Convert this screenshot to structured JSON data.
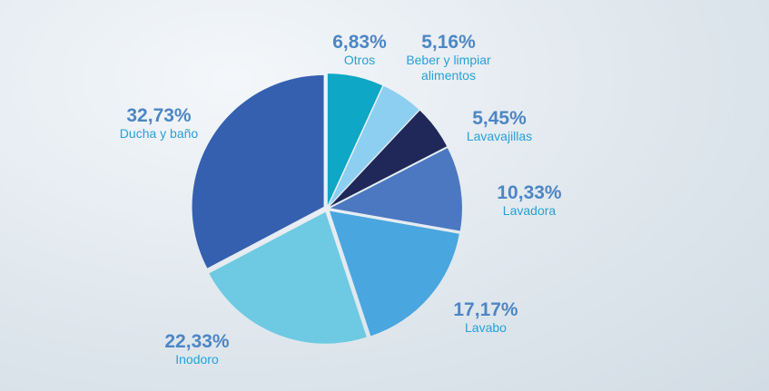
{
  "chart_data": {
    "type": "pie",
    "categories": [
      "Otros",
      "Beber y limpiar alimentos",
      "Lavavajillas",
      "Lavadora",
      "Lavabo",
      "Inodoro",
      "Ducha y baño"
    ],
    "values": [
      6.83,
      5.16,
      5.45,
      10.33,
      17.17,
      22.33,
      32.73
    ],
    "value_labels": [
      "6,83%",
      "5,16%",
      "5,45%",
      "10,33%",
      "17,17%",
      "22,33%",
      "32,73%"
    ],
    "colors": [
      "#0ea7c6",
      "#8ccff1",
      "#1f2858",
      "#4b78c0",
      "#49a6df",
      "#6dcae2",
      "#3560b0"
    ]
  }
}
